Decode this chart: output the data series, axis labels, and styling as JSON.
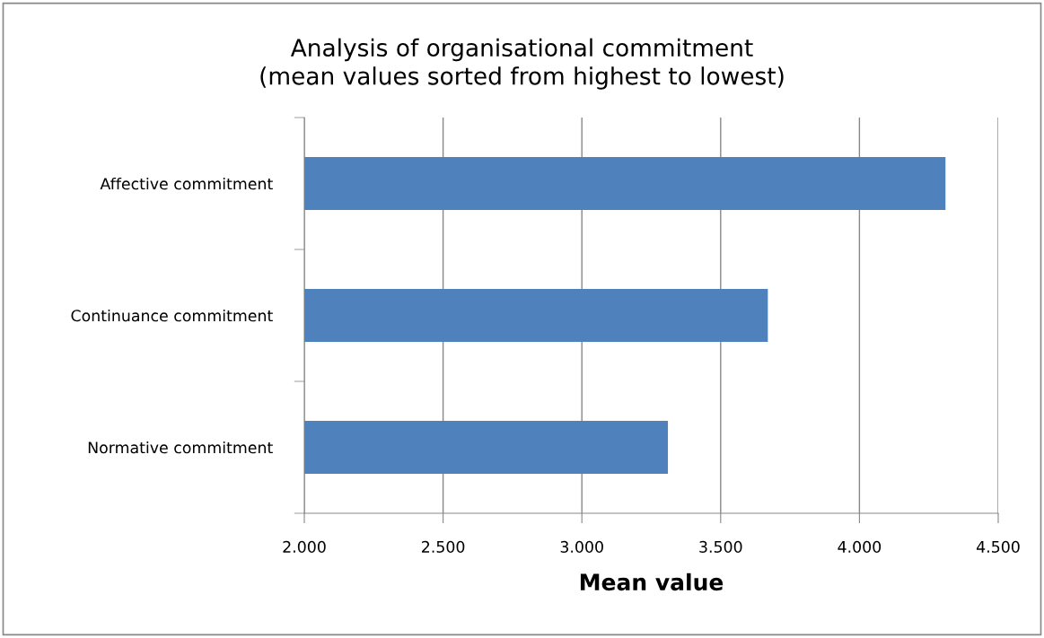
{
  "chart_data": {
    "type": "bar",
    "orientation": "horizontal",
    "title": "Analysis of organisational commitment\n(mean values sorted from highest to lowest)",
    "xlabel": "Mean value",
    "categories": [
      "Affective commitment",
      "Continuance commitment",
      "Normative commitment"
    ],
    "values": [
      4.31,
      3.67,
      3.31
    ],
    "color": "#4f81bd",
    "xlim": [
      2,
      4.5
    ],
    "xticks": [
      {
        "value": 2,
        "label": "2.000"
      },
      {
        "value": 2.5,
        "label": "2.500"
      },
      {
        "value": 3,
        "label": "3.000"
      },
      {
        "value": 3.5,
        "label": "3.500"
      },
      {
        "value": 4,
        "label": "4.000"
      },
      {
        "value": 4.5,
        "label": "4.500"
      }
    ],
    "grid": "x",
    "legend": false
  }
}
